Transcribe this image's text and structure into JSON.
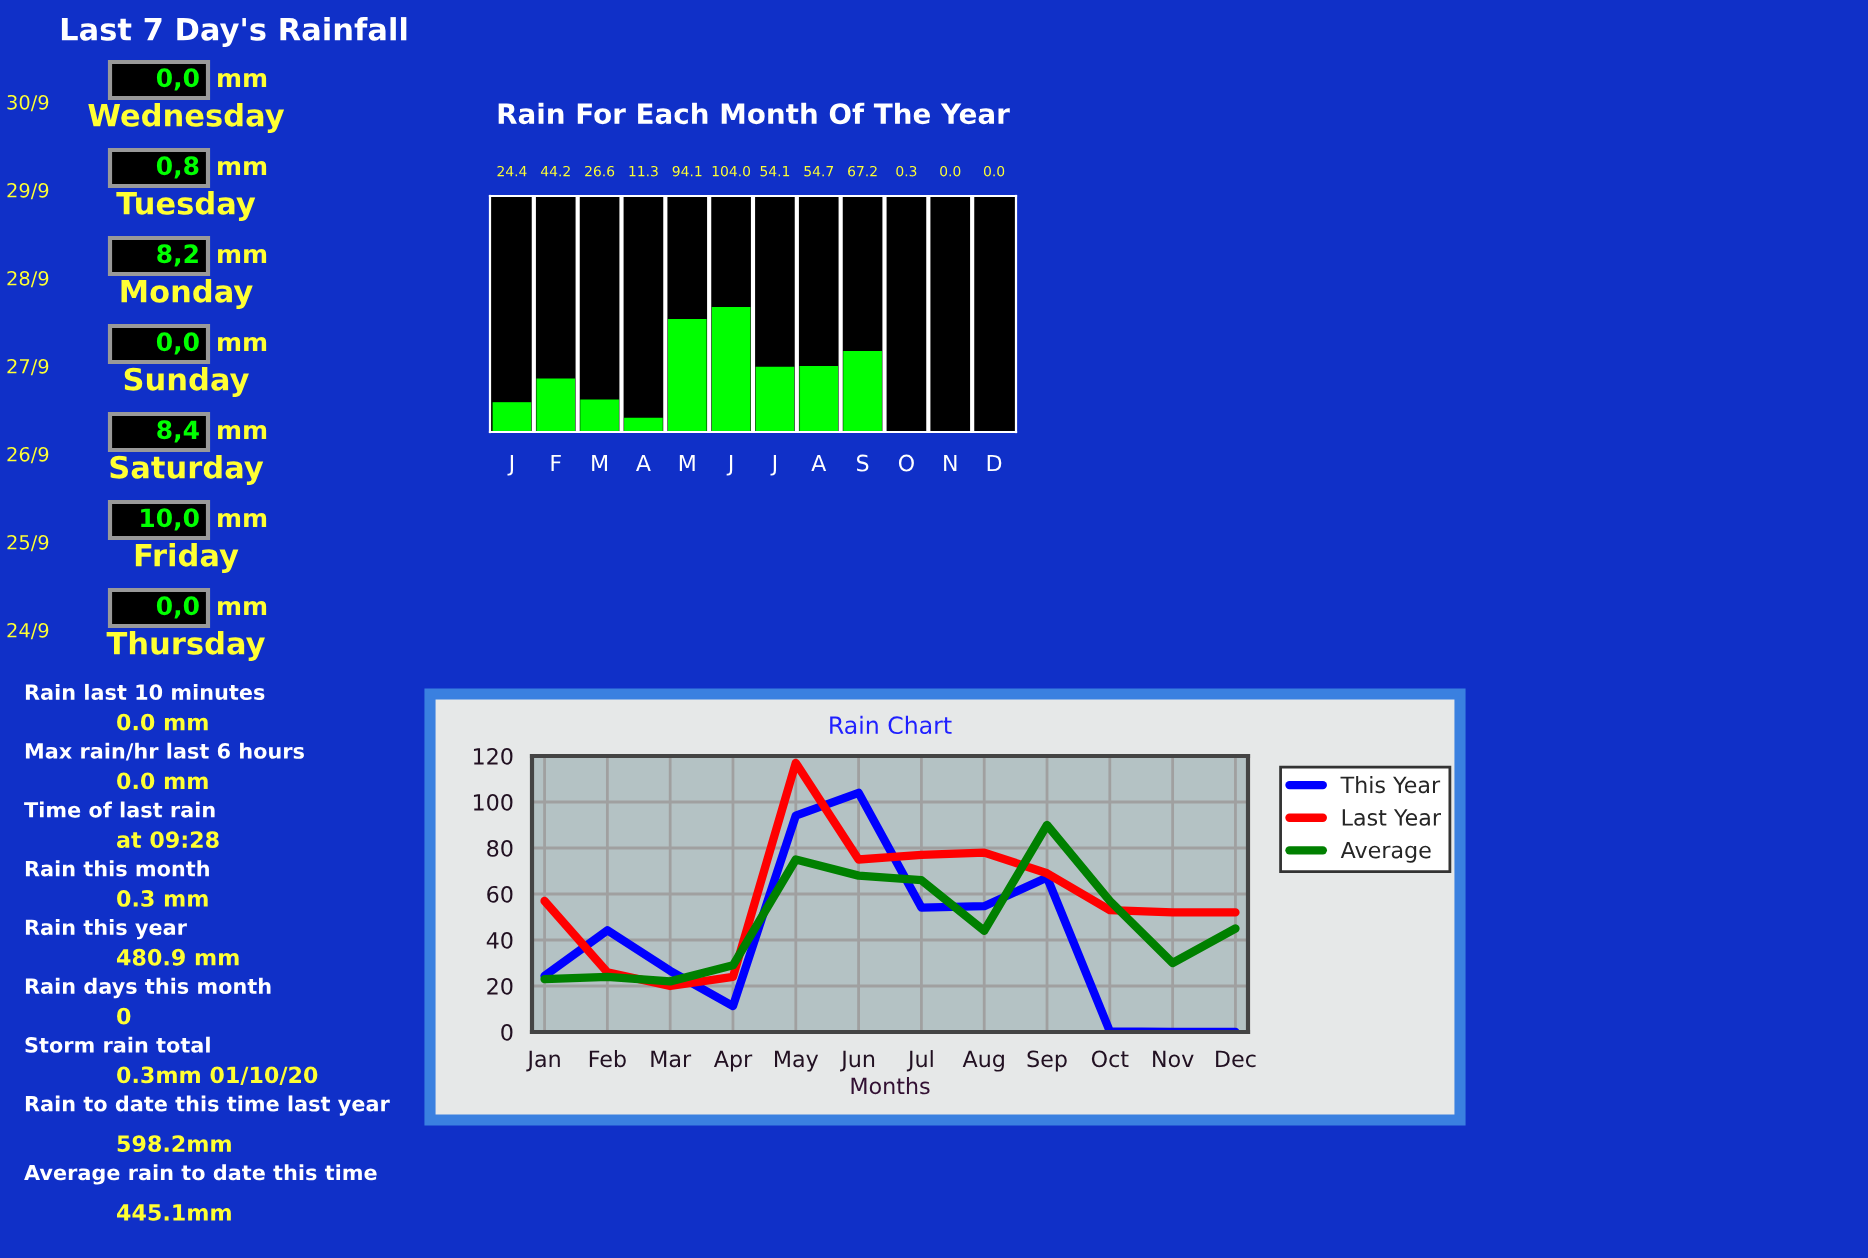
{
  "chart_data": [
    {
      "type": "other",
      "title": "Last 7 Day's Rainfall",
      "categories": [
        "Wednesday",
        "Tuesday",
        "Monday",
        "Sunday",
        "Saturday",
        "Friday",
        "Thursday"
      ],
      "value_labels": [
        "0,0",
        "0,8",
        "8,2",
        "0,0",
        "8,4",
        "10,0",
        "0,0"
      ],
      "ylabel": "mm",
      "annotations": [
        "30/9",
        "29/9",
        "28/9",
        "27/9",
        "26/9",
        "25/9",
        "24/9"
      ]
    },
    {
      "type": "other",
      "annotations": [
        "Rain last 10 minutes",
        "0.0 mm",
        "Max rain/hr last 6 hours",
        "0.0 mm",
        "Time of last rain",
        "at 09:28",
        "Rain this month",
        "0.3 mm",
        "Rain this year",
        "480.9 mm",
        "Rain days this month",
        "0",
        "Storm rain total",
        "0.3mm 01/10/20",
        "Rain to date this time last year",
        "598.2mm",
        "Average rain to date this time",
        "445.1mm"
      ]
    },
    {
      "type": "bar",
      "title": "Rain For Each Month Of The Year",
      "categories": [
        "J",
        "F",
        "M",
        "A",
        "M",
        "J",
        "J",
        "A",
        "S",
        "O",
        "N",
        "D"
      ],
      "values": [
        24.4,
        44.2,
        26.6,
        11.3,
        94.1,
        104.0,
        54.1,
        54.7,
        67.2,
        0.3,
        0.0,
        0.0
      ],
      "color": "#00ff00",
      "data_labels": true,
      "value_labels": [
        "24.4",
        "44.2",
        "26.6",
        "11.3",
        "94.1",
        "104.0",
        "54.1",
        "54.7",
        "67.2",
        "0.3",
        "0.0",
        "0.0"
      ]
    },
    {
      "type": "line",
      "title": "Rain Chart",
      "xlabel": "Months",
      "categories": [
        "Jan",
        "Feb",
        "Mar",
        "Apr",
        "May",
        "Jun",
        "Jul",
        "Aug",
        "Sep",
        "Oct",
        "Nov",
        "Dec"
      ],
      "ylim": [
        0,
        120
      ],
      "yticks": [
        0,
        20,
        40,
        60,
        80,
        100,
        120
      ],
      "grid": true,
      "legend": "right",
      "series": [
        {
          "name": "This Year",
          "color": "#0000ff",
          "values": [
            24.4,
            44.2,
            26.6,
            11.3,
            94.1,
            104.0,
            54.1,
            54.7,
            67.2,
            0.3,
            0.0,
            0.0
          ]
        },
        {
          "name": "Last Year",
          "color": "#ff0000",
          "values": [
            57,
            26,
            20,
            24,
            117,
            75,
            77,
            78,
            69,
            53,
            52,
            52
          ]
        },
        {
          "name": "Average",
          "color": "#008000",
          "values": [
            23,
            24,
            22,
            29,
            75,
            68,
            66,
            44,
            90,
            57,
            30,
            45
          ]
        }
      ]
    }
  ]
}
